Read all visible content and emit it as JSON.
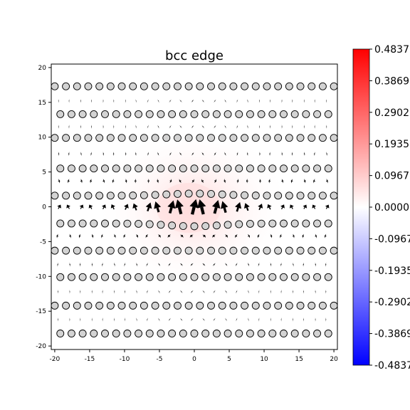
{
  "chart_data": {
    "type": "quiver",
    "title": "bcc edge",
    "xlabel": "",
    "ylabel": "",
    "xlim": [
      -20.5,
      20.5
    ],
    "ylim": [
      -20.5,
      20.5
    ],
    "x_ticks": [
      "-20",
      "-15",
      "-10",
      "-5",
      "0",
      "5",
      "10",
      "15",
      "20"
    ],
    "y_ticks": [
      "20",
      "15",
      "10",
      "5",
      "0",
      "-5",
      "-10",
      "-15",
      "-20"
    ],
    "x_tick_values": [
      -20,
      -15,
      -10,
      -5,
      0,
      5,
      10,
      15,
      20
    ],
    "y_tick_values": [
      20,
      15,
      10,
      5,
      0,
      -5,
      -10,
      -15,
      -20
    ],
    "atom_rows_y": [
      17.3,
      13.3,
      9.9,
      5.5,
      1.6,
      -2.4,
      -6.3,
      -10.1,
      -14.2,
      -18.2
    ],
    "atom_color": "#d3d3d3",
    "background_colormap": "bwr",
    "colorbar": {
      "min": -0.4837,
      "max": 0.4837,
      "ticks": [
        {
          "value": 0.4837,
          "label": "0.4837"
        },
        {
          "value": 0.3869,
          "label": "0.3869"
        },
        {
          "value": 0.2902,
          "label": "0.2902"
        },
        {
          "value": 0.1935,
          "label": "0.1935"
        },
        {
          "value": 0.0967,
          "label": "0.0967"
        },
        {
          "value": 0.0,
          "label": "0.0000"
        },
        {
          "value": -0.0967,
          "label": "-0.0967"
        },
        {
          "value": -0.1935,
          "label": "-0.1935"
        },
        {
          "value": -0.2902,
          "label": "-0.2902"
        },
        {
          "value": -0.3869,
          "label": "-0.3869"
        },
        {
          "value": -0.4837,
          "label": "-0.4837"
        }
      ]
    },
    "grid": false,
    "legend": "none"
  }
}
